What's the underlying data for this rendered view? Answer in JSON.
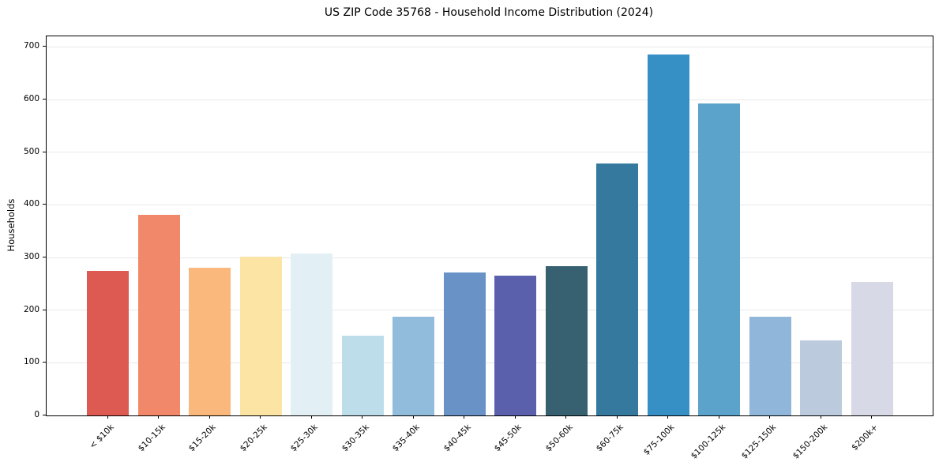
{
  "chart_data": {
    "type": "bar",
    "title": "US ZIP Code 35768 - Household Income Distribution (2024)",
    "xlabel": "",
    "ylabel": "Households",
    "categories": [
      "< $10k",
      "$10-15k",
      "$15-20k",
      "$20-25k",
      "$25-30k",
      "$30-35k",
      "$35-40k",
      "$40-45k",
      "$45-50k",
      "$50-60k",
      "$60-75k",
      "$75-100k",
      "$100-125k",
      "$125-150k",
      "$150-200k",
      "$200k+"
    ],
    "values": [
      275,
      381,
      281,
      301,
      307,
      152,
      188,
      272,
      266,
      283,
      479,
      686,
      592,
      188,
      142,
      253
    ],
    "bar_colors": [
      "#dc5a52",
      "#f2886a",
      "#fab87d",
      "#fce4a4",
      "#e2f0f5",
      "#bcdde9",
      "#92bcdc",
      "#6992c6",
      "#5b60ad",
      "#376170",
      "#35799e",
      "#3690c5",
      "#5ba3ca",
      "#90b7d9",
      "#bccade",
      "#d8d9e7"
    ],
    "ylim": [
      0,
      720
    ],
    "yticks": [
      0,
      100,
      200,
      300,
      400,
      500,
      600,
      700
    ],
    "grid": "horizontal",
    "grid_color": "#e8e8e8",
    "legend": "none",
    "background": "#ffffff",
    "xtick_rotation": 45
  }
}
